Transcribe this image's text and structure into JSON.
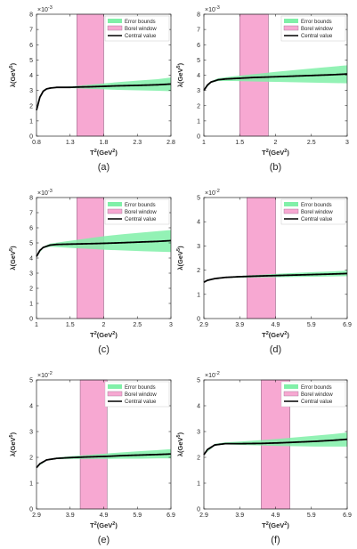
{
  "legend": {
    "error_bounds": "Error bounds",
    "borel_window": "Borel window",
    "central_value": "Central value"
  },
  "colors": {
    "error_band": "#80f0a8",
    "borel_window": "#f7a8d2",
    "central_line": "#000000",
    "axes": "#262626"
  },
  "chart_data": [
    {
      "type": "line",
      "panel_label": "(a)",
      "xlabel": "T2(GeV2)",
      "ylabel": "λ(GeV5)",
      "y_exponent": "-3",
      "xlim": [
        0.8,
        2.8
      ],
      "xticks": [
        0.8,
        1.3,
        1.8,
        2.3,
        2.8
      ],
      "xticklabels": [
        "0.8",
        "1.3",
        "1.8",
        "2.3",
        "2.8"
      ],
      "ylim": [
        0,
        8
      ],
      "yticks": [
        0,
        1,
        2,
        3,
        4,
        5,
        6,
        7,
        8
      ],
      "borel_window": [
        1.4,
        1.8
      ],
      "series": [
        {
          "name": "Central value",
          "x": [
            0.8,
            0.85,
            0.9,
            0.95,
            1.0,
            1.1,
            1.2,
            1.3,
            1.4,
            1.6,
            1.8,
            2.0,
            2.3,
            2.6,
            2.8
          ],
          "y": [
            1.7,
            2.55,
            2.95,
            3.1,
            3.15,
            3.2,
            3.2,
            3.2,
            3.22,
            3.24,
            3.27,
            3.3,
            3.33,
            3.37,
            3.42
          ]
        },
        {
          "name": "Error bounds",
          "x": [
            0.8,
            0.9,
            1.0,
            1.2,
            1.4,
            1.6,
            1.8,
            2.0,
            2.3,
            2.6,
            2.8
          ],
          "lower": [
            1.7,
            2.95,
            3.14,
            3.17,
            3.14,
            3.1,
            3.07,
            3.04,
            3.01,
            2.98,
            2.95
          ],
          "upper": [
            1.7,
            2.95,
            3.16,
            3.23,
            3.3,
            3.38,
            3.46,
            3.54,
            3.64,
            3.74,
            3.85
          ]
        }
      ]
    },
    {
      "type": "line",
      "panel_label": "(b)",
      "xlabel": "T2(GeV2)",
      "ylabel": "λ(GeV5)",
      "y_exponent": "-3",
      "xlim": [
        1,
        3
      ],
      "xticks": [
        1,
        1.5,
        2,
        2.5,
        3
      ],
      "xticklabels": [
        "1",
        "1.5",
        "2",
        "2.5",
        "3"
      ],
      "ylim": [
        0,
        8
      ],
      "yticks": [
        0,
        1,
        2,
        3,
        4,
        5,
        6,
        7,
        8
      ],
      "borel_window": [
        1.5,
        1.9
      ],
      "series": [
        {
          "name": "Central value",
          "x": [
            1.0,
            1.05,
            1.1,
            1.2,
            1.3,
            1.5,
            1.7,
            1.9,
            2.2,
            2.5,
            2.8,
            3.0
          ],
          "y": [
            3.0,
            3.35,
            3.55,
            3.7,
            3.75,
            3.8,
            3.85,
            3.88,
            3.93,
            3.98,
            4.03,
            4.08
          ]
        },
        {
          "name": "Error bounds",
          "x": [
            1.0,
            1.1,
            1.2,
            1.4,
            1.6,
            1.8,
            2.0,
            2.3,
            2.6,
            3.0
          ],
          "lower": [
            3.0,
            3.5,
            3.62,
            3.62,
            3.6,
            3.58,
            3.56,
            3.53,
            3.5,
            3.47
          ],
          "upper": [
            3.0,
            3.6,
            3.8,
            3.92,
            4.02,
            4.12,
            4.22,
            4.35,
            4.48,
            4.65
          ]
        }
      ]
    },
    {
      "type": "line",
      "panel_label": "(c)",
      "xlabel": "T2(GeV2)",
      "ylabel": "λ(GeV5)",
      "y_exponent": "-3",
      "xlim": [
        1,
        3
      ],
      "xticks": [
        1,
        1.5,
        2,
        2.5,
        3
      ],
      "xticklabels": [
        "1",
        "1.5",
        "2",
        "2.5",
        "3"
      ],
      "ylim": [
        0,
        8
      ],
      "yticks": [
        0,
        1,
        2,
        3,
        4,
        5,
        6,
        7,
        8
      ],
      "borel_window": [
        1.6,
        2.0
      ],
      "series": [
        {
          "name": "Central value",
          "x": [
            1.0,
            1.05,
            1.1,
            1.2,
            1.3,
            1.5,
            1.7,
            1.9,
            2.2,
            2.5,
            2.8,
            3.0
          ],
          "y": [
            4.1,
            4.5,
            4.7,
            4.85,
            4.9,
            4.92,
            4.94,
            4.96,
            5.0,
            5.05,
            5.1,
            5.15
          ]
        },
        {
          "name": "Error bounds",
          "x": [
            1.0,
            1.1,
            1.2,
            1.4,
            1.6,
            1.8,
            2.0,
            2.3,
            2.6,
            3.0
          ],
          "lower": [
            4.1,
            4.65,
            4.75,
            4.7,
            4.65,
            4.6,
            4.55,
            4.5,
            4.45,
            4.4
          ],
          "upper": [
            4.1,
            4.75,
            4.95,
            5.08,
            5.2,
            5.32,
            5.44,
            5.58,
            5.7,
            5.85
          ]
        }
      ]
    },
    {
      "type": "line",
      "panel_label": "(d)",
      "xlabel": "T2(GeV2)",
      "ylabel": "λ(GeV5)",
      "y_exponent": "-2",
      "xlim": [
        2.9,
        6.9
      ],
      "xticks": [
        2.9,
        3.9,
        4.9,
        5.9,
        6.9
      ],
      "xticklabels": [
        "2.9",
        "3.9",
        "4.9",
        "5.9",
        "6.9"
      ],
      "ylim": [
        0,
        5
      ],
      "yticks": [
        0,
        1,
        2,
        3,
        4,
        5
      ],
      "borel_window": [
        4.1,
        4.9
      ],
      "series": [
        {
          "name": "Central value",
          "x": [
            2.9,
            3.0,
            3.2,
            3.5,
            3.9,
            4.5,
            5.0,
            5.5,
            6.0,
            6.5,
            6.9
          ],
          "y": [
            1.5,
            1.58,
            1.65,
            1.7,
            1.73,
            1.76,
            1.78,
            1.8,
            1.82,
            1.84,
            1.86
          ]
        },
        {
          "name": "Error bounds",
          "x": [
            2.9,
            3.2,
            3.5,
            4.0,
            4.5,
            5.0,
            5.5,
            6.0,
            6.5,
            6.9
          ],
          "lower": [
            1.5,
            1.64,
            1.68,
            1.69,
            1.7,
            1.71,
            1.72,
            1.73,
            1.74,
            1.75
          ],
          "upper": [
            1.5,
            1.66,
            1.72,
            1.77,
            1.81,
            1.85,
            1.89,
            1.92,
            1.95,
            1.98
          ]
        }
      ]
    },
    {
      "type": "line",
      "panel_label": "(e)",
      "xlabel": "T2(GeV2)",
      "ylabel": "λ(GeV5)",
      "y_exponent": "-2",
      "xlim": [
        2.9,
        6.9
      ],
      "xticks": [
        2.9,
        3.9,
        4.9,
        5.9,
        6.9
      ],
      "xticklabels": [
        "2.9",
        "3.9",
        "4.9",
        "5.9",
        "6.9"
      ],
      "ylim": [
        0,
        5
      ],
      "yticks": [
        0,
        1,
        2,
        3,
        4,
        5
      ],
      "borel_window": [
        4.2,
        5.0
      ],
      "series": [
        {
          "name": "Central value",
          "x": [
            2.9,
            3.0,
            3.2,
            3.5,
            3.9,
            4.5,
            5.0,
            5.5,
            6.0,
            6.5,
            6.9
          ],
          "y": [
            1.6,
            1.75,
            1.9,
            1.96,
            1.99,
            2.02,
            2.04,
            2.07,
            2.09,
            2.11,
            2.13
          ]
        },
        {
          "name": "Error bounds",
          "x": [
            2.9,
            3.2,
            3.5,
            4.0,
            4.5,
            5.0,
            5.5,
            6.0,
            6.5,
            6.9
          ],
          "lower": [
            1.6,
            1.88,
            1.93,
            1.94,
            1.94,
            1.94,
            1.95,
            1.95,
            1.96,
            1.96
          ],
          "upper": [
            1.6,
            1.92,
            1.99,
            2.05,
            2.1,
            2.15,
            2.2,
            2.24,
            2.28,
            2.32
          ]
        }
      ]
    },
    {
      "type": "line",
      "panel_label": "(f)",
      "xlabel": "T2(GeV2)",
      "ylabel": "λ(GeV5)",
      "y_exponent": "-2",
      "xlim": [
        2.9,
        6.9
      ],
      "xticks": [
        2.9,
        3.9,
        4.9,
        5.9,
        6.9
      ],
      "xticklabels": [
        "2.9",
        "3.9",
        "4.9",
        "5.9",
        "6.9"
      ],
      "ylim": [
        0,
        5
      ],
      "yticks": [
        0,
        1,
        2,
        3,
        4,
        5
      ],
      "borel_window": [
        4.5,
        5.3
      ],
      "series": [
        {
          "name": "Central value",
          "x": [
            2.9,
            3.0,
            3.2,
            3.5,
            3.9,
            4.5,
            5.0,
            5.5,
            6.0,
            6.5,
            6.9
          ],
          "y": [
            2.1,
            2.3,
            2.48,
            2.53,
            2.53,
            2.54,
            2.56,
            2.59,
            2.62,
            2.66,
            2.7
          ]
        },
        {
          "name": "Error bounds",
          "x": [
            2.9,
            3.2,
            3.5,
            4.0,
            4.5,
            5.0,
            5.5,
            6.0,
            6.5,
            6.9
          ],
          "lower": [
            2.1,
            2.45,
            2.5,
            2.48,
            2.46,
            2.44,
            2.43,
            2.42,
            2.42,
            2.42
          ],
          "upper": [
            2.1,
            2.52,
            2.58,
            2.62,
            2.67,
            2.72,
            2.78,
            2.84,
            2.9,
            2.96
          ]
        }
      ]
    }
  ]
}
